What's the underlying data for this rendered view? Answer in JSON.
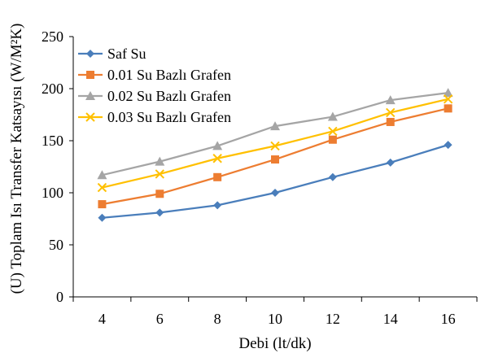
{
  "chart_data": {
    "type": "line",
    "title": "",
    "xlabel": "Debi (lt/dk)",
    "ylabel": "(U) Toplam Isı  Transfer Katsayısı (W/M²K)",
    "x": [
      4,
      6,
      8,
      10,
      12,
      14,
      16
    ],
    "x_ticks": [
      "4",
      "6",
      "8",
      "10",
      "12",
      "14",
      "16"
    ],
    "ylim": [
      0,
      250
    ],
    "y_ticks": [
      "0",
      "50",
      "100",
      "150",
      "200",
      "250"
    ],
    "grid": false,
    "legend_position": "top-left",
    "series": [
      {
        "name": "Saf Su",
        "color": "#4a7ebb",
        "marker": "diamond",
        "values": [
          76,
          81,
          88,
          100,
          115,
          129,
          146
        ]
      },
      {
        "name": "0.01 Su Bazlı Grafen",
        "color": "#ed7d31",
        "marker": "square",
        "values": [
          89,
          99,
          115,
          132,
          151,
          168,
          181
        ]
      },
      {
        "name": "0.02 Su Bazlı Grafen",
        "color": "#a5a5a5",
        "marker": "triangle",
        "values": [
          117,
          130,
          145,
          164,
          173,
          189,
          196
        ]
      },
      {
        "name": "0.03 Su Bazlı Grafen",
        "color": "#ffc000",
        "marker": "x",
        "values": [
          105,
          118,
          133,
          145,
          159,
          177,
          190
        ]
      }
    ]
  }
}
